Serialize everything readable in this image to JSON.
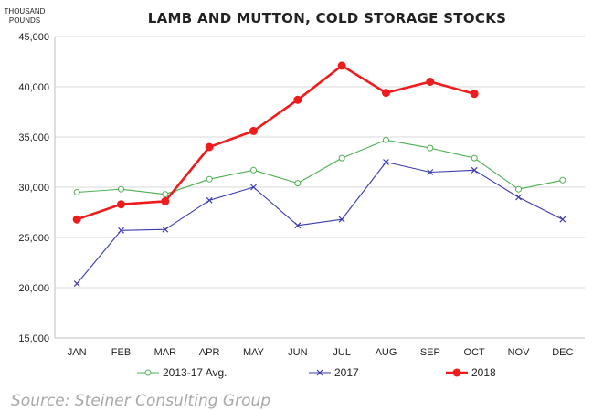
{
  "chart_data": {
    "type": "line",
    "title": "LAMB AND MUTTON, COLD STORAGE STOCKS",
    "unit_label": [
      "THOUSAND",
      "POUNDS"
    ],
    "categories": [
      "JAN",
      "FEB",
      "MAR",
      "APR",
      "MAY",
      "JUN",
      "JUL",
      "AUG",
      "SEP",
      "OCT",
      "NOV",
      "DEC"
    ],
    "ylim": [
      15000,
      45000
    ],
    "yticks": [
      15000,
      20000,
      25000,
      30000,
      35000,
      40000,
      45000
    ],
    "ytick_labels": [
      "15,000",
      "20,000",
      "25,000",
      "30,000",
      "35,000",
      "40,000",
      "45,000"
    ],
    "grid": true,
    "legend_position": "bottom",
    "series": [
      {
        "name": "2013-17 Avg.",
        "color": "#4caf50",
        "marker": "open-circle",
        "values": [
          29500,
          29800,
          29300,
          30800,
          31700,
          30400,
          32900,
          34700,
          33900,
          32900,
          29800,
          30700
        ]
      },
      {
        "name": "2017",
        "color": "#3b3bb0",
        "marker": "x",
        "values": [
          20400,
          25700,
          25800,
          28700,
          30000,
          26200,
          26800,
          32500,
          31500,
          31700,
          29000,
          26800
        ]
      },
      {
        "name": "2018",
        "color": "#ee1c1c",
        "marker": "filled-circle",
        "values": [
          26800,
          28300,
          28600,
          34000,
          35600,
          38700,
          42100,
          39400,
          40500,
          39300,
          null,
          null
        ]
      }
    ]
  },
  "source_text": "Source: Steiner Consulting Group"
}
